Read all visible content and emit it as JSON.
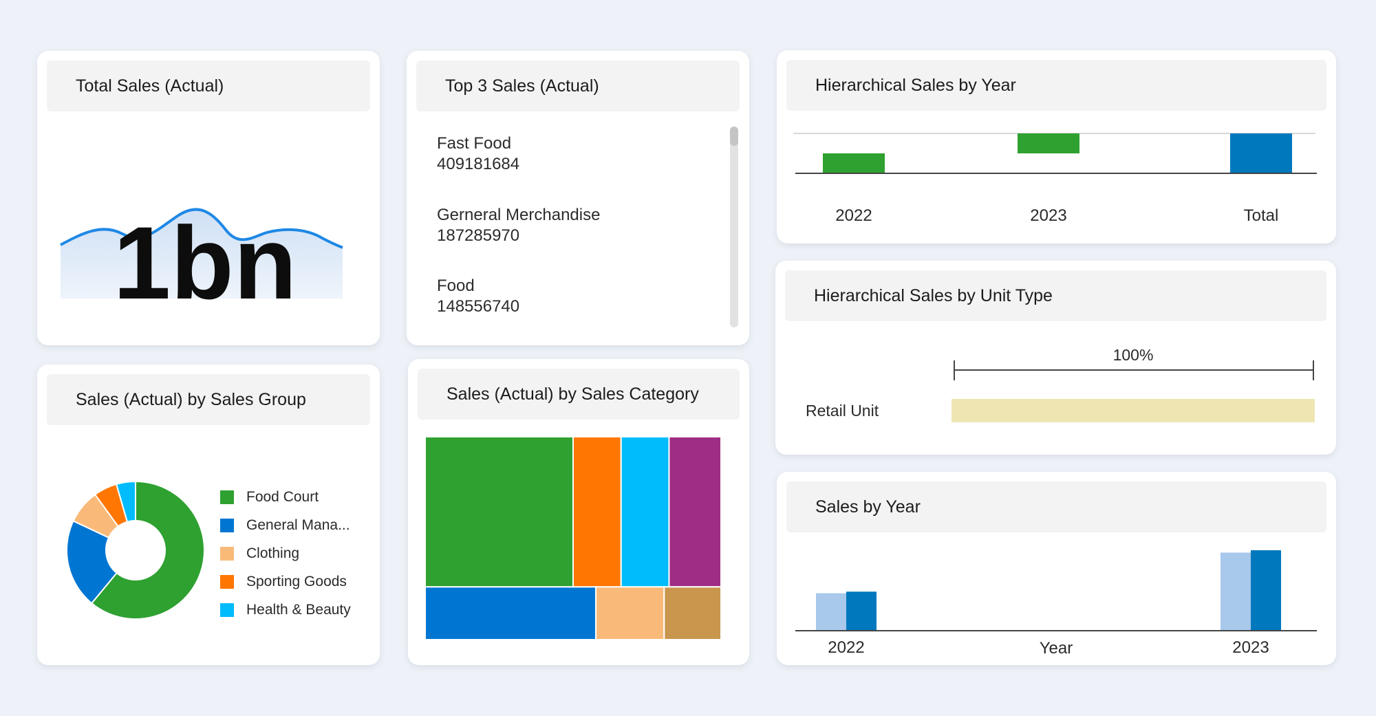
{
  "total_sales": {
    "title": "Total Sales (Actual)",
    "value": "1bn",
    "sparkline_color": "#1e88e5"
  },
  "top3": {
    "title": "Top 3 Sales (Actual)",
    "items": [
      {
        "name": "Fast Food",
        "value": "409181684"
      },
      {
        "name": "Gerneral Merchandise",
        "value": "187285970"
      },
      {
        "name": "Food",
        "value": "148556740"
      }
    ]
  },
  "hier_year": {
    "title": "Hierarchical Sales by Year"
  },
  "hier_unit": {
    "title": "Hierarchical Sales by Unit Type"
  },
  "sales_group": {
    "title": "Sales (Actual) by Sales Group"
  },
  "sales_category": {
    "title": "Sales (Actual) by Sales Category"
  },
  "sales_year": {
    "title": "Sales by Year"
  },
  "chart_data": [
    {
      "id": "hier_year",
      "type": "bar",
      "subtype": "waterfall",
      "categories": [
        "2022",
        "2023",
        "Total"
      ],
      "values": [
        0.5,
        0.5,
        1.0
      ],
      "colors": [
        "#2ea130",
        "#2ea130",
        "#0078be"
      ],
      "ylim": [
        0,
        1.0
      ]
    },
    {
      "id": "hier_unit",
      "type": "bar",
      "orientation": "horizontal",
      "categories": [
        "Retail Unit"
      ],
      "values": [
        100
      ],
      "annotation": "100%",
      "color": "#efe5b2",
      "xlim": [
        0,
        100
      ]
    },
    {
      "id": "sales_group",
      "type": "pie",
      "donut": true,
      "labels": [
        "Food Court",
        "General Mana...",
        "Clothing",
        "Sporting Goods",
        "Health & Beauty"
      ],
      "values": [
        61,
        21,
        8,
        5.5,
        4.5
      ],
      "colors": [
        "#2ea130",
        "#0076d2",
        "#f9ba79",
        "#ff7602",
        "#00bcfd"
      ],
      "legend": "right"
    },
    {
      "id": "sales_category",
      "type": "treemap",
      "values": [
        37,
        12,
        12,
        13,
        15,
        6,
        5
      ],
      "colors": [
        "#2ea130",
        "#ff7602",
        "#00bcfd",
        "#9e2d85",
        "#0076d2",
        "#f9ba79",
        "#c8964c"
      ]
    },
    {
      "id": "sales_year",
      "type": "bar",
      "categories": [
        "2022",
        "2023"
      ],
      "xlabel": "Year",
      "series": [
        {
          "values": [
            0.48,
            1.0
          ],
          "color": "#a8c8ec"
        },
        {
          "values": [
            0.5,
            1.03
          ],
          "color": "#0078be"
        }
      ],
      "ylim": [
        0,
        1.03
      ]
    }
  ]
}
